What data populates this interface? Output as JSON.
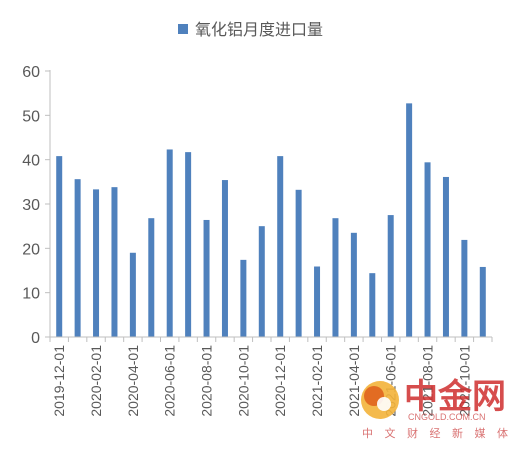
{
  "chart_data": {
    "type": "bar",
    "title": "",
    "xlabel": "",
    "ylabel": "",
    "ylim": [
      0,
      60
    ],
    "yticks": [
      0,
      10,
      20,
      30,
      40,
      50,
      60
    ],
    "grid": false,
    "legend_position": "top",
    "bar_color": "#4f81bd",
    "categories": [
      "2019-12-01",
      "2020-01-01",
      "2020-02-01",
      "2020-03-01",
      "2020-04-01",
      "2020-05-01",
      "2020-06-01",
      "2020-07-01",
      "2020-08-01",
      "2020-09-01",
      "2020-10-01",
      "2020-11-01",
      "2020-12-01",
      "2021-01-01",
      "2021-02-01",
      "2021-03-01",
      "2021-04-01",
      "2021-05-01",
      "2021-06-01",
      "2021-07-01",
      "2021-08-01",
      "2021-09-01",
      "2021-10-01",
      "2021-11-01"
    ],
    "xtick_labels": [
      "2019-12-01",
      "2020-02-01",
      "2020-04-01",
      "2020-06-01",
      "2020-08-01",
      "2020-10-01",
      "2020-12-01",
      "2021-02-01",
      "2021-04-01",
      "2021-06-01",
      "2021-08-01",
      "2021-10-01"
    ],
    "series": [
      {
        "name": "氧化铝月度进口量",
        "values": [
          40.8,
          35.6,
          33.3,
          33.8,
          19.0,
          26.8,
          42.3,
          41.7,
          26.4,
          35.4,
          17.4,
          25.0,
          40.8,
          33.2,
          15.9,
          26.8,
          23.5,
          14.4,
          27.5,
          52.7,
          39.4,
          36.1,
          21.9,
          15.8
        ]
      }
    ]
  },
  "watermark": {
    "brand": "中金网",
    "url": "CNGOLD.COM.CN",
    "subtitle": "中 文 财 经 新 媒 体",
    "color": "#cf2e2e"
  }
}
